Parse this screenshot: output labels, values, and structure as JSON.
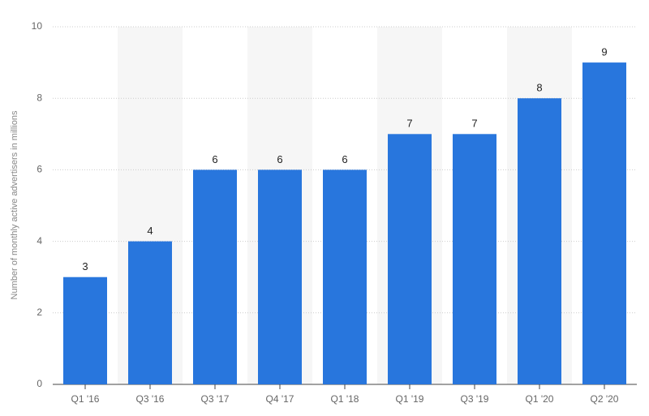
{
  "chart_data": {
    "type": "bar",
    "y_label": "Number of monthly active advertisers in millions",
    "categories": [
      "Q1 '16",
      "Q3 '16",
      "Q3 '17",
      "Q4 '17",
      "Q1 '18",
      "Q1 '19",
      "Q3 '19",
      "Q1 '20",
      "Q2 '20"
    ],
    "values": [
      3,
      4,
      6,
      6,
      6,
      7,
      7,
      8,
      9
    ],
    "color": "#2876dd",
    "ylim": [
      0,
      10
    ],
    "yticks": [
      0,
      2,
      4,
      6,
      8,
      10
    ],
    "grid": true
  }
}
